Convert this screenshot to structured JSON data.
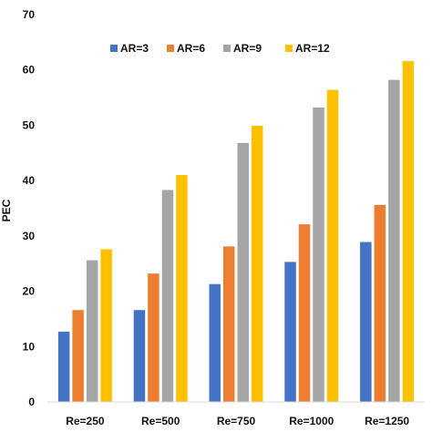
{
  "chart_data": {
    "type": "bar",
    "title": "",
    "xlabel": "",
    "ylabel": "PEC",
    "ylim": [
      0,
      70
    ],
    "yticks": [
      0,
      10,
      20,
      30,
      40,
      50,
      60,
      70
    ],
    "grid": false,
    "legend_position": "top",
    "categories": [
      "Re=250",
      "Re=500",
      "Re=750",
      "Re=1000",
      "Re=1250"
    ],
    "series": [
      {
        "name": "AR=3",
        "color": "#4472C4",
        "values": [
          12.7,
          16.6,
          21.3,
          25.3,
          28.9
        ]
      },
      {
        "name": "AR=6",
        "color": "#ED7D31",
        "values": [
          16.6,
          23.2,
          28.1,
          32.1,
          35.6
        ]
      },
      {
        "name": "AR=9",
        "color": "#A5A5A5",
        "values": [
          25.6,
          38.3,
          46.8,
          53.2,
          58.2
        ]
      },
      {
        "name": "AR=12",
        "color": "#FFC000",
        "values": [
          27.6,
          41.0,
          49.9,
          56.4,
          61.6
        ]
      }
    ]
  }
}
